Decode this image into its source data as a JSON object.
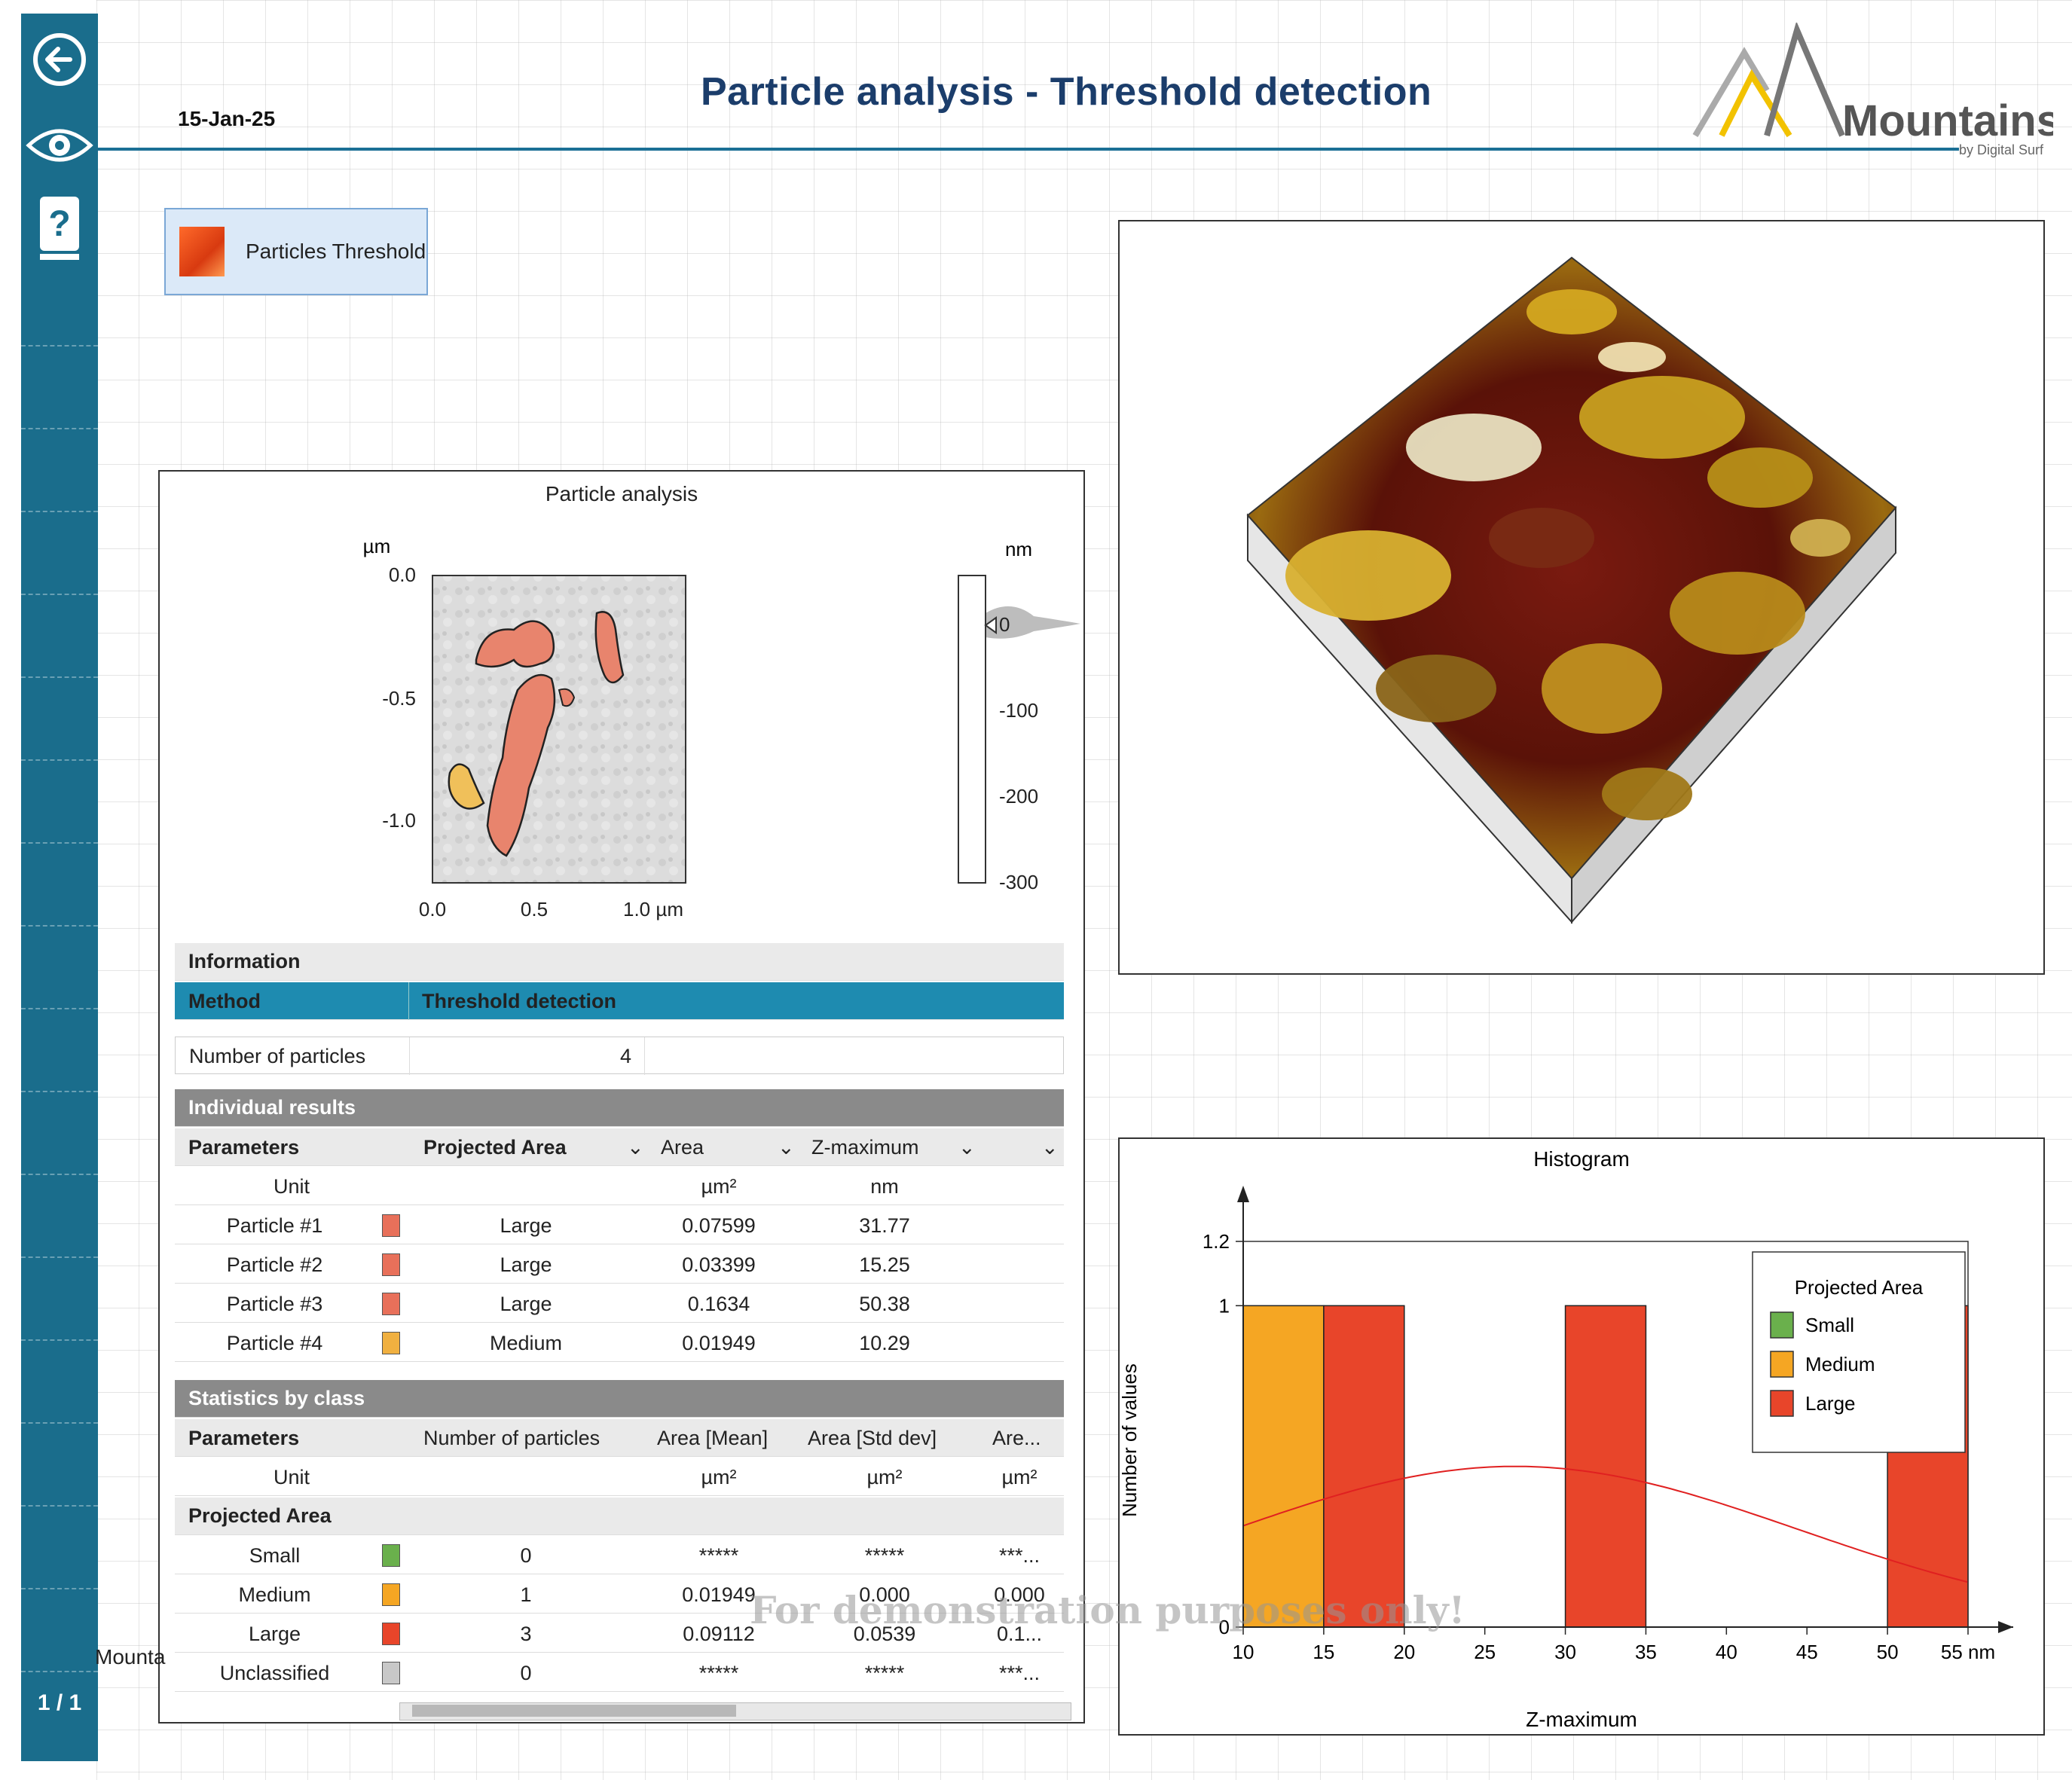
{
  "header": {
    "date": "15-Jan-25",
    "title": "Particle analysis - Threshold detection",
    "logo_text": "Mountains",
    "logo_sub": "by Digital Surf"
  },
  "sidebar": {
    "page_indicator": "1 / 1"
  },
  "study_button": {
    "label": "Particles Threshold"
  },
  "particle_panel": {
    "title": "Particle analysis",
    "y_unit": "µm",
    "x_ticks": [
      "0.0",
      "0.5",
      "1.0 µm"
    ],
    "y_ticks": [
      "0.0",
      "-0.5",
      "-1.0"
    ],
    "scale_unit": "nm",
    "scale_ticks": [
      "0",
      "-100",
      "-200",
      "-300"
    ]
  },
  "info": {
    "header": "Information",
    "method_label": "Method",
    "method_value": "Threshold detection",
    "count_label": "Number of particles",
    "count_value": "4"
  },
  "individual": {
    "header": "Individual results",
    "columns": [
      "Parameters",
      "Projected Area",
      "Area",
      "Z-maximum"
    ],
    "unit_label": "Unit",
    "units": [
      "",
      "µm²",
      "nm"
    ],
    "rows": [
      {
        "name": "Particle #1",
        "color": "#e8705a",
        "class": "Large",
        "area": "0.07599",
        "zmax": "31.77"
      },
      {
        "name": "Particle #2",
        "color": "#e8705a",
        "class": "Large",
        "area": "0.03399",
        "zmax": "15.25"
      },
      {
        "name": "Particle #3",
        "color": "#e8705a",
        "class": "Large",
        "area": "0.1634",
        "zmax": "50.38"
      },
      {
        "name": "Particle #4",
        "color": "#f0b040",
        "class": "Medium",
        "area": "0.01949",
        "zmax": "10.29"
      }
    ]
  },
  "stats": {
    "header": "Statistics by class",
    "columns": [
      "Parameters",
      "Number of particles",
      "Area [Mean]",
      "Area [Std dev]",
      "Are..."
    ],
    "unit_label": "Unit",
    "units": [
      "",
      "µm²",
      "µm²",
      "µm²"
    ],
    "group_label": "Projected Area",
    "rows": [
      {
        "name": "Small",
        "color": "#6ab04c",
        "count": "0",
        "mean": "*****",
        "std": "*****",
        "extra": "***..."
      },
      {
        "name": "Medium",
        "color": "#f5a623",
        "count": "1",
        "mean": "0.01949",
        "std": "0.000",
        "extra": "0.000"
      },
      {
        "name": "Large",
        "color": "#e8452a",
        "count": "3",
        "mean": "0.09112",
        "std": "0.0539",
        "extra": "0.1..."
      },
      {
        "name": "Unclassified",
        "color": "#c8c8c8",
        "count": "0",
        "mean": "*****",
        "std": "*****",
        "extra": "***..."
      }
    ]
  },
  "watermark": "For demonstration purposes only!",
  "cut_text": "Mounta",
  "chart_data": {
    "type": "bar",
    "title": "Histogram",
    "xlabel": "Z-maximum",
    "ylabel": "Number of values",
    "x_unit": "nm",
    "xlim": [
      10,
      55
    ],
    "ylim": [
      0,
      1.2
    ],
    "x_ticks": [
      "10",
      "15",
      "20",
      "25",
      "30",
      "35",
      "40",
      "45",
      "50",
      "55 nm"
    ],
    "y_ticks": [
      "0",
      "1",
      "1.2"
    ],
    "bins": [
      {
        "from": 10,
        "to": 15,
        "value": 1,
        "class": "Medium"
      },
      {
        "from": 15,
        "to": 20,
        "value": 1,
        "class": "Large"
      },
      {
        "from": 30,
        "to": 35,
        "value": 1,
        "class": "Large"
      },
      {
        "from": 50,
        "to": 55,
        "value": 1,
        "class": "Large"
      }
    ],
    "legend": {
      "title": "Projected Area",
      "position": "top-right",
      "entries": [
        {
          "name": "Small",
          "color": "#6ab04c"
        },
        {
          "name": "Medium",
          "color": "#f5a623"
        },
        {
          "name": "Large",
          "color": "#e8452a"
        }
      ]
    },
    "fit_curve": {
      "color": "#e02020",
      "mean": 26.9,
      "std": 17.6
    }
  }
}
